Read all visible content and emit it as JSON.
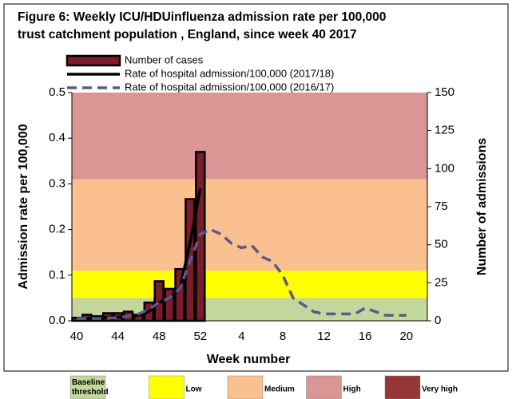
{
  "chart_data": {
    "type": "bar_line",
    "title": [
      "Figure 6: Weekly ICU/HDUinfluenza admission rate per 100,000",
      "trust catchment population , England, since week 40 2017"
    ],
    "x_label": "Week number",
    "y_label": "Admission rate per 100,000",
    "y2_label": "Number of admissions",
    "categories": [
      40,
      null,
      null,
      null,
      44,
      null,
      null,
      null,
      48,
      null,
      null,
      null,
      52,
      null,
      null,
      null,
      4,
      null,
      null,
      null,
      8,
      null,
      null,
      null,
      12,
      null,
      null,
      null,
      16,
      null,
      null,
      null,
      20
    ],
    "ylim": [
      0,
      0.5
    ],
    "yticks": [
      {
        "value": 0,
        "label": "0.0"
      },
      0.1,
      0.2,
      0.3,
      0.4,
      0.5
    ],
    "y2lim": [
      0,
      150
    ],
    "y2ticks": [
      0,
      25,
      50,
      75,
      100,
      125,
      150
    ],
    "series": [
      {
        "name": "Number of cases",
        "kind": "bar",
        "axis": "y2",
        "color": "#7b1c2c",
        "values": [
          2,
          4,
          3,
          5,
          5,
          6,
          4,
          12,
          26,
          21,
          34,
          80,
          111,
          null,
          null,
          null,
          null,
          null,
          null,
          null,
          null,
          null,
          null,
          null,
          null,
          null,
          null,
          null,
          null,
          null,
          null,
          null,
          null
        ]
      },
      {
        "name": "Rate of hospital admission/100,000 (2017/18)",
        "kind": "line",
        "color": "#000000",
        "values": [
          0.003,
          0.005,
          0.006,
          0.007,
          0.008,
          0.01,
          0.012,
          0.02,
          0.04,
          0.05,
          0.07,
          0.17,
          0.29,
          null,
          null,
          null,
          null,
          null,
          null,
          null,
          null,
          null,
          null,
          null,
          null,
          null,
          null,
          null,
          null,
          null,
          null,
          null,
          null
        ]
      },
      {
        "name": "Rate of hospital admission/100,000 (2016/17)",
        "kind": "dashed-line",
        "color": "#5a5a8c",
        "values": [
          0.005,
          0.005,
          0.005,
          0.006,
          0.007,
          0.01,
          0.015,
          0.025,
          0.04,
          0.05,
          0.07,
          0.13,
          0.19,
          0.2,
          0.19,
          0.17,
          0.16,
          0.165,
          0.14,
          0.13,
          0.1,
          0.05,
          0.035,
          0.02,
          0.015,
          0.015,
          0.015,
          0.015,
          0.028,
          0.02,
          0.012,
          0.012,
          0.012
        ]
      }
    ],
    "bands": [
      {
        "label": "Baseline threshold",
        "color": "#c3d69b",
        "from": 0,
        "to": 0.05
      },
      {
        "label": "Low",
        "color": "#ffff00",
        "from": 0.05,
        "to": 0.11
      },
      {
        "label": "Medium",
        "color": "#fac090",
        "from": 0.11,
        "to": 0.31
      },
      {
        "label": "High",
        "color": "#d99694",
        "from": 0.31,
        "to": 0.5
      },
      {
        "label": "Very high",
        "color": "#953735"
      }
    ]
  }
}
